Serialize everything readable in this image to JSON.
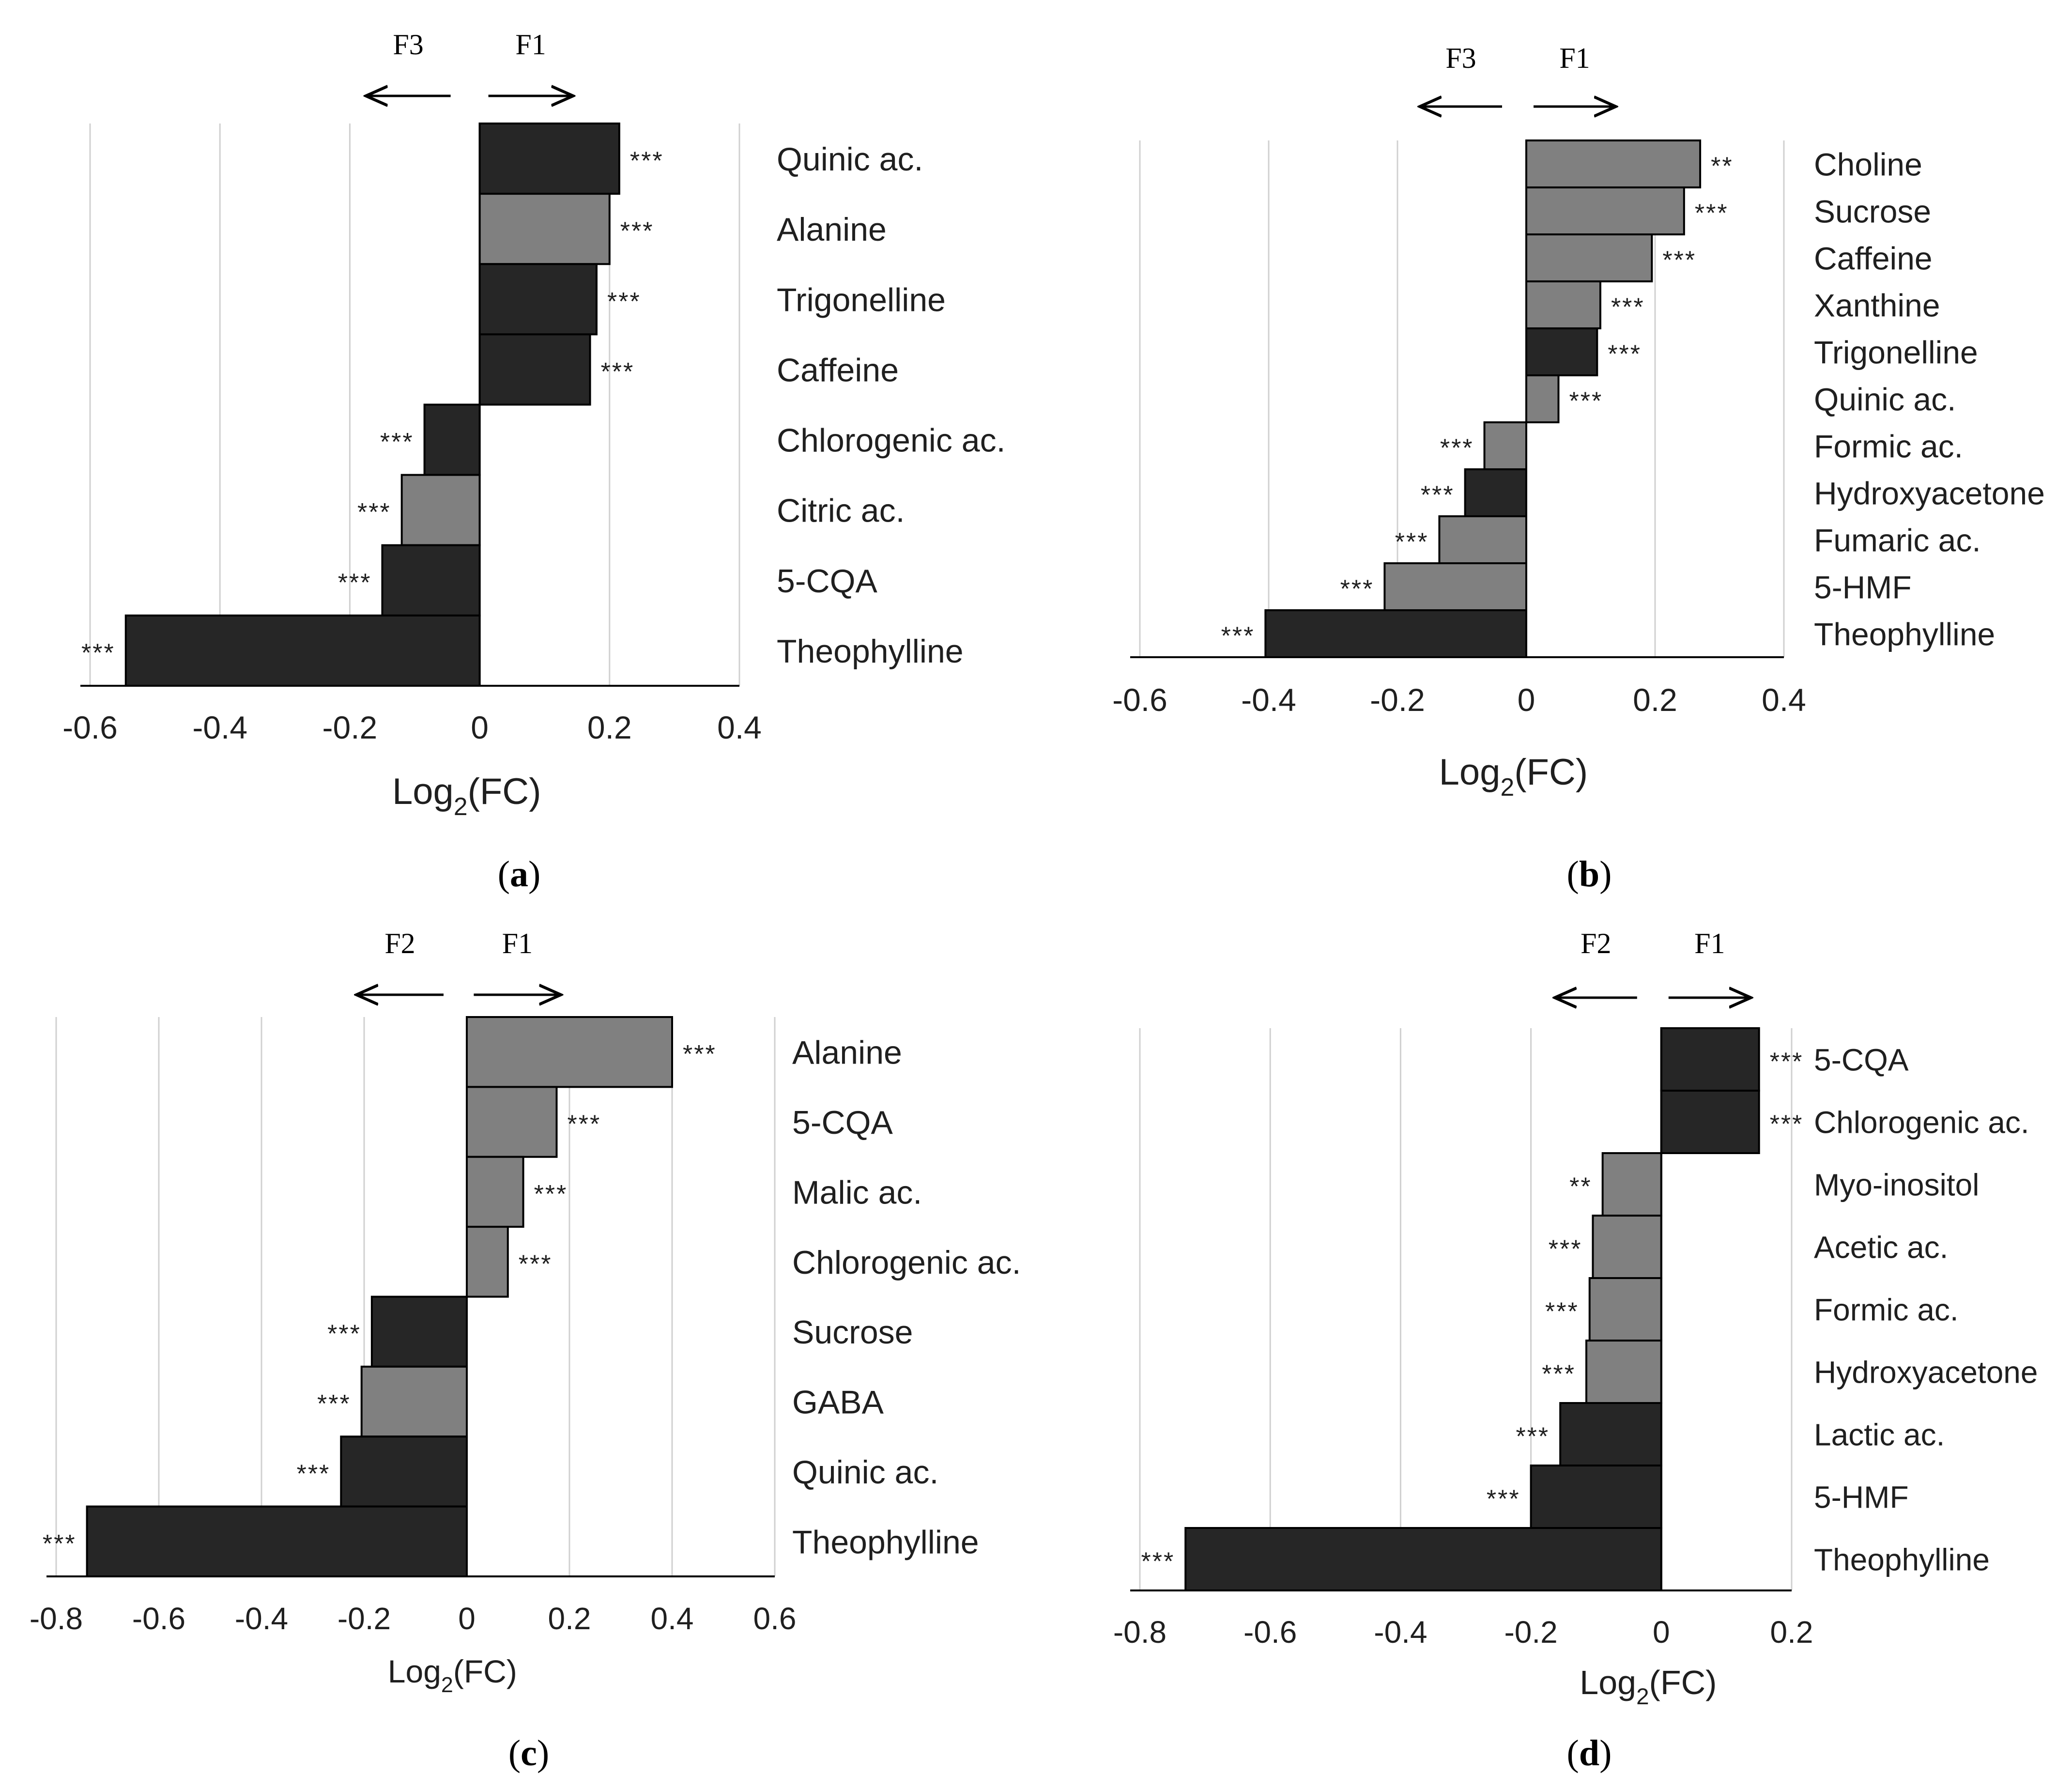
{
  "panels": [
    {
      "caption": "(a)",
      "chart_data": {
        "type": "bar",
        "orientation": "horizontal",
        "xlabel": "Log2(FC)",
        "xlim": [
          -0.6,
          0.4
        ],
        "xticks": [
          -0.6,
          -0.4,
          -0.2,
          0,
          0.2,
          0.4
        ],
        "xtick_labels": [
          "-0.6",
          "-0.4",
          "-0.2",
          "0",
          "0.2",
          "0.4"
        ],
        "grid": true,
        "direction_left": "F3",
        "direction_right": "F1",
        "categories": [
          "Quinic ac.",
          "Alanine",
          "Trigonelline",
          "Caffeine",
          "Chlorogenic ac.",
          "Citric ac.",
          "5-CQA",
          "Theophylline"
        ],
        "values": [
          0.215,
          0.2,
          0.18,
          0.17,
          -0.085,
          -0.12,
          -0.15,
          -0.545
        ],
        "shades": [
          "dark",
          "gray",
          "dark",
          "dark",
          "dark",
          "gray",
          "dark",
          "dark"
        ],
        "significance": [
          "***",
          "***",
          "***",
          "***",
          "***",
          "***",
          "***",
          "***"
        ]
      }
    },
    {
      "caption": "(b)",
      "chart_data": {
        "type": "bar",
        "orientation": "horizontal",
        "xlabel": "Log2(FC)",
        "xlim": [
          -0.6,
          0.4
        ],
        "xticks": [
          -0.6,
          -0.4,
          -0.2,
          0,
          0.2,
          0.4
        ],
        "xtick_labels": [
          "-0.6",
          "-0.4",
          "-0.2",
          "0",
          "0.2",
          "0.4"
        ],
        "grid": true,
        "direction_left": "F3",
        "direction_right": "F1",
        "categories": [
          "Choline",
          "Sucrose",
          "Caffeine",
          "Xanthine",
          "Trigonelline",
          "Quinic ac.",
          "Formic ac.",
          "Hydroxyacetone",
          "Fumaric ac.",
          "5-HMF",
          "Theophylline"
        ],
        "values": [
          0.27,
          0.245,
          0.195,
          0.115,
          0.11,
          0.05,
          -0.065,
          -0.095,
          -0.135,
          -0.22,
          -0.405
        ],
        "shades": [
          "gray",
          "gray",
          "gray",
          "gray",
          "dark",
          "gray",
          "gray",
          "dark",
          "gray",
          "gray",
          "dark"
        ],
        "significance": [
          "**",
          "***",
          "***",
          "***",
          "***",
          "***",
          "***",
          "***",
          "***",
          "***",
          "***"
        ]
      }
    },
    {
      "caption": "(c)",
      "chart_data": {
        "type": "bar",
        "orientation": "horizontal",
        "xlabel": "Log2(FC)",
        "xlim": [
          -0.8,
          0.6
        ],
        "xticks": [
          -0.8,
          -0.6,
          -0.4,
          -0.2,
          0,
          0.2,
          0.4,
          0.6
        ],
        "xtick_labels": [
          "-0.8",
          "-0.6",
          "-0.4",
          "-0.2",
          "0",
          "0.2",
          "0.4",
          "0.6"
        ],
        "grid": true,
        "direction_left": "F2",
        "direction_right": "F1",
        "categories": [
          "Alanine",
          "5-CQA",
          "Malic ac.",
          "Chlorogenic ac.",
          "Sucrose",
          "GABA",
          "Quinic ac.",
          "Theophylline"
        ],
        "values": [
          0.4,
          0.175,
          0.11,
          0.08,
          -0.185,
          -0.205,
          -0.245,
          -0.74
        ],
        "shades": [
          "gray",
          "gray",
          "gray",
          "gray",
          "dark",
          "gray",
          "dark",
          "dark"
        ],
        "significance": [
          "***",
          "***",
          "***",
          "***",
          "***",
          "***",
          "***",
          "***"
        ]
      }
    },
    {
      "caption": "(d)",
      "chart_data": {
        "type": "bar",
        "orientation": "horizontal",
        "xlabel": "Log2(FC)",
        "xlim": [
          -0.8,
          0.2
        ],
        "xticks": [
          -0.8,
          -0.6,
          -0.4,
          -0.2,
          0,
          0.2
        ],
        "xtick_labels": [
          "-0.8",
          "-0.6",
          "-0.4",
          "-0.2",
          "0",
          "0.2"
        ],
        "grid": true,
        "direction_left": "F2",
        "direction_right": "F1",
        "categories": [
          "5-CQA",
          "Chlorogenic ac.",
          "Myo-inositol",
          "Acetic ac.",
          "Formic ac.",
          "Hydroxyacetone",
          "Lactic ac.",
          "5-HMF",
          "Theophylline"
        ],
        "values": [
          0.15,
          0.15,
          -0.09,
          -0.105,
          -0.11,
          -0.115,
          -0.155,
          -0.2,
          -0.73
        ],
        "shades": [
          "dark",
          "dark",
          "gray",
          "gray",
          "gray",
          "gray",
          "dark",
          "dark",
          "dark"
        ],
        "significance": [
          "***",
          "***",
          "**",
          "***",
          "***",
          "***",
          "***",
          "***",
          "***"
        ]
      }
    }
  ]
}
